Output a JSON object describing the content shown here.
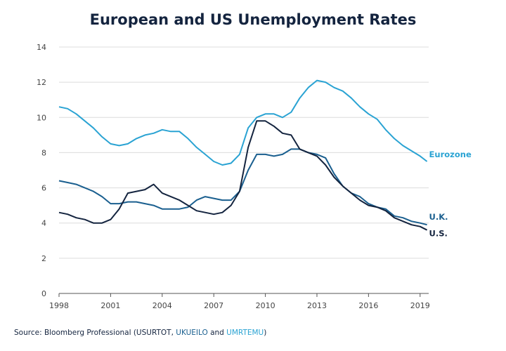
{
  "title": "European and US Unemployment Rates",
  "source": {
    "prefix": "Source: Bloomberg Professional (USURTOT, ",
    "uk_code": "UKUEILO",
    "middle": " and ",
    "ez_code": "UMRTEMU",
    "suffix": ")"
  },
  "chart_data": {
    "type": "line",
    "title": "European and US Unemployment Rates",
    "xlabel": "",
    "ylabel": "",
    "xlim": [
      1998,
      2019.5
    ],
    "ylim": [
      0,
      14
    ],
    "xticks": [
      1998,
      2001,
      2004,
      2007,
      2010,
      2013,
      2016,
      2019
    ],
    "yticks": [
      0,
      2,
      4,
      6,
      8,
      10,
      12,
      14
    ],
    "grid": "horizontal",
    "legend": "inline labels at right end of lines",
    "series": [
      {
        "name": "Eurozone",
        "color": "#2aa3d3",
        "x": [
          1998,
          1998.5,
          1999,
          1999.5,
          2000,
          2000.5,
          2001,
          2001.5,
          2002,
          2002.5,
          2003,
          2003.5,
          2004,
          2004.5,
          2005,
          2005.5,
          2006,
          2006.5,
          2007,
          2007.5,
          2008,
          2008.5,
          2009,
          2009.5,
          2010,
          2010.5,
          2011,
          2011.5,
          2012,
          2012.5,
          2013,
          2013.5,
          2014,
          2014.5,
          2015,
          2015.5,
          2016,
          2016.5,
          2017,
          2017.5,
          2018,
          2018.5,
          2019,
          2019.4
        ],
        "values": [
          10.6,
          10.5,
          10.2,
          9.8,
          9.4,
          8.9,
          8.5,
          8.4,
          8.5,
          8.8,
          9.0,
          9.1,
          9.3,
          9.2,
          9.2,
          8.8,
          8.3,
          7.9,
          7.5,
          7.3,
          7.4,
          7.9,
          9.4,
          10.0,
          10.2,
          10.2,
          10.0,
          10.3,
          11.1,
          11.7,
          12.1,
          12.0,
          11.7,
          11.5,
          11.1,
          10.6,
          10.2,
          9.9,
          9.3,
          8.8,
          8.4,
          8.1,
          7.8,
          7.5
        ]
      },
      {
        "name": "U.K.",
        "color": "#1a5f8f",
        "x": [
          1998,
          1998.5,
          1999,
          1999.5,
          2000,
          2000.5,
          2001,
          2001.5,
          2002,
          2002.5,
          2003,
          2003.5,
          2004,
          2004.5,
          2005,
          2005.5,
          2006,
          2006.5,
          2007,
          2007.5,
          2008,
          2008.5,
          2009,
          2009.5,
          2010,
          2010.5,
          2011,
          2011.5,
          2012,
          2012.5,
          2013,
          2013.5,
          2014,
          2014.5,
          2015,
          2015.5,
          2016,
          2016.5,
          2017,
          2017.5,
          2018,
          2018.5,
          2019,
          2019.4
        ],
        "values": [
          6.4,
          6.3,
          6.2,
          6.0,
          5.8,
          5.5,
          5.1,
          5.1,
          5.2,
          5.2,
          5.1,
          5.0,
          4.8,
          4.8,
          4.8,
          4.9,
          5.3,
          5.5,
          5.4,
          5.3,
          5.3,
          5.8,
          7.0,
          7.9,
          7.9,
          7.8,
          7.9,
          8.2,
          8.2,
          8.0,
          7.9,
          7.7,
          6.8,
          6.1,
          5.7,
          5.5,
          5.1,
          4.9,
          4.8,
          4.4,
          4.3,
          4.1,
          4.0,
          3.9
        ]
      },
      {
        "name": "U.S.",
        "color": "#14243f",
        "x": [
          1998,
          1998.5,
          1999,
          1999.5,
          2000,
          2000.5,
          2001,
          2001.5,
          2002,
          2002.5,
          2003,
          2003.5,
          2004,
          2004.5,
          2005,
          2005.5,
          2006,
          2006.5,
          2007,
          2007.5,
          2008,
          2008.5,
          2009,
          2009.5,
          2010,
          2010.5,
          2011,
          2011.5,
          2012,
          2012.5,
          2013,
          2013.5,
          2014,
          2014.5,
          2015,
          2015.5,
          2016,
          2016.5,
          2017,
          2017.5,
          2018,
          2018.5,
          2019,
          2019.4
        ],
        "values": [
          4.6,
          4.5,
          4.3,
          4.2,
          4.0,
          4.0,
          4.2,
          4.8,
          5.7,
          5.8,
          5.9,
          6.2,
          5.7,
          5.5,
          5.3,
          5.0,
          4.7,
          4.6,
          4.5,
          4.6,
          5.0,
          5.8,
          8.3,
          9.8,
          9.8,
          9.5,
          9.1,
          9.0,
          8.2,
          8.0,
          7.8,
          7.3,
          6.6,
          6.1,
          5.7,
          5.3,
          5.0,
          4.9,
          4.7,
          4.3,
          4.1,
          3.9,
          3.8,
          3.6
        ]
      }
    ]
  }
}
